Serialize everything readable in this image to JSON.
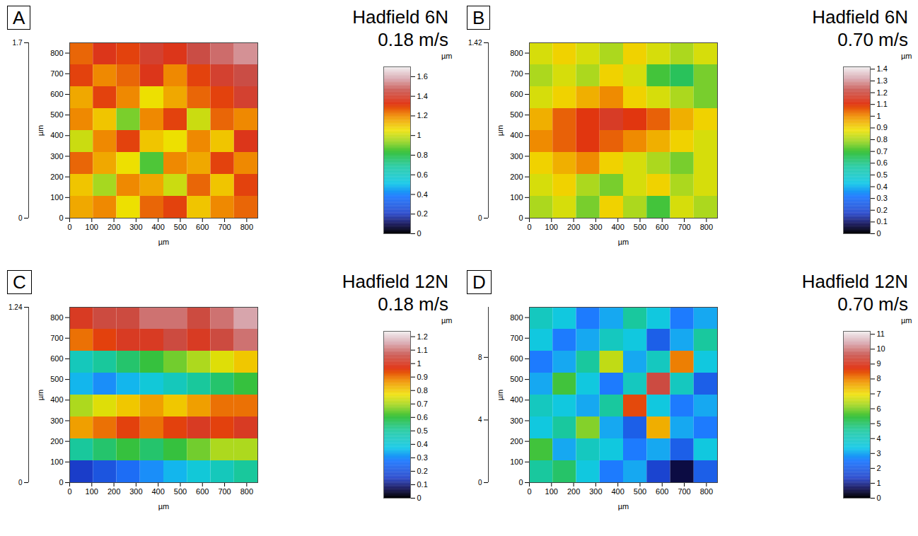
{
  "chart_data": [
    {
      "type": "heatmap",
      "panel": "A",
      "title": "Hadfield 6N",
      "subtitle": "0.18 m/s",
      "xlabel": "µm",
      "ylabel": "µm",
      "xlim": [
        0,
        850
      ],
      "xticks": [
        0,
        100,
        200,
        300,
        400,
        500,
        600,
        700,
        800
      ],
      "ylim": [
        0,
        850
      ],
      "yticks": [
        0,
        100,
        200,
        300,
        400,
        500,
        600,
        700,
        800
      ],
      "zlim": [
        0,
        1.7
      ],
      "zticks": [
        0,
        1.7
      ],
      "cells": [
        [
          1.15,
          1.2,
          1.05,
          1.25,
          1.3,
          1.1,
          1.2,
          1.25
        ],
        [
          1.1,
          0.95,
          1.2,
          1.15,
          1.0,
          1.25,
          1.1,
          1.3
        ],
        [
          1.25,
          1.15,
          1.05,
          0.85,
          1.2,
          1.15,
          1.3,
          1.2
        ],
        [
          1.0,
          1.2,
          1.3,
          1.1,
          1.05,
          1.2,
          1.1,
          1.35
        ],
        [
          1.2,
          1.1,
          0.9,
          1.2,
          1.3,
          1.0,
          1.25,
          1.2
        ],
        [
          1.15,
          1.3,
          1.2,
          1.05,
          1.15,
          1.25,
          1.3,
          1.4
        ],
        [
          1.3,
          1.2,
          1.25,
          1.35,
          1.2,
          1.3,
          1.4,
          1.45
        ],
        [
          1.25,
          1.35,
          1.3,
          1.4,
          1.35,
          1.45,
          1.5,
          1.55
        ]
      ],
      "colorbar": {
        "label": "µm",
        "range": [
          0,
          1.7
        ],
        "ticks": [
          0,
          0.2,
          0.4,
          0.6,
          0.8,
          1,
          1.2,
          1.4,
          1.6
        ]
      }
    },
    {
      "type": "heatmap",
      "panel": "B",
      "title": "Hadfield 6N",
      "subtitle": "0.70 m/s",
      "xlabel": "µm",
      "ylabel": "µm",
      "xlim": [
        0,
        850
      ],
      "xticks": [
        0,
        100,
        200,
        300,
        400,
        500,
        600,
        700,
        800
      ],
      "ylim": [
        0,
        850
      ],
      "yticks": [
        0,
        100,
        200,
        300,
        400,
        500,
        600,
        700,
        800
      ],
      "zlim": [
        0,
        1.42
      ],
      "zticks": [
        0,
        1.42
      ],
      "cells": [
        [
          0.8,
          0.85,
          0.75,
          0.9,
          0.8,
          0.7,
          0.85,
          0.8
        ],
        [
          0.85,
          0.9,
          0.8,
          0.75,
          0.85,
          0.9,
          0.8,
          0.85
        ],
        [
          0.9,
          0.95,
          1.0,
          0.9,
          0.85,
          0.8,
          0.75,
          0.85
        ],
        [
          1.0,
          1.05,
          1.1,
          1.05,
          1.0,
          0.95,
          0.9,
          0.85
        ],
        [
          0.95,
          1.05,
          1.1,
          1.15,
          1.1,
          1.05,
          0.95,
          0.9
        ],
        [
          0.85,
          0.9,
          0.95,
          1.0,
          0.9,
          0.85,
          0.8,
          0.75
        ],
        [
          0.8,
          0.85,
          0.8,
          0.9,
          0.85,
          0.7,
          0.65,
          0.75
        ],
        [
          0.85,
          0.9,
          0.85,
          0.8,
          0.9,
          0.85,
          0.8,
          0.85
        ]
      ],
      "colorbar": {
        "label": "µm",
        "range": [
          0,
          1.42
        ],
        "ticks": [
          0,
          0.1,
          0.2,
          0.3,
          0.4,
          0.5,
          0.6,
          0.7,
          0.8,
          0.9,
          1,
          1.1,
          1.2,
          1.3,
          1.4
        ]
      }
    },
    {
      "type": "heatmap",
      "panel": "C",
      "title": "Hadfield 12N",
      "subtitle": "0.18 m/s",
      "xlabel": "µm",
      "ylabel": "µm",
      "xlim": [
        0,
        850
      ],
      "xticks": [
        0,
        100,
        200,
        300,
        400,
        500,
        600,
        700,
        800
      ],
      "ylim": [
        0,
        850
      ],
      "yticks": [
        0,
        100,
        200,
        300,
        400,
        500,
        600,
        700,
        800
      ],
      "zlim": [
        0,
        1.24
      ],
      "zticks": [
        0,
        1.24
      ],
      "cells": [
        [
          0.15,
          0.2,
          0.25,
          0.3,
          0.35,
          0.4,
          0.45,
          0.5
        ],
        [
          0.5,
          0.55,
          0.6,
          0.55,
          0.6,
          0.65,
          0.7,
          0.7
        ],
        [
          0.85,
          0.9,
          0.95,
          0.9,
          0.95,
          1.0,
          0.95,
          1.0
        ],
        [
          0.7,
          0.75,
          0.8,
          0.85,
          0.8,
          0.85,
          0.9,
          0.9
        ],
        [
          0.35,
          0.3,
          0.35,
          0.4,
          0.45,
          0.5,
          0.55,
          0.6
        ],
        [
          0.45,
          0.5,
          0.55,
          0.6,
          0.65,
          0.7,
          0.75,
          0.8
        ],
        [
          0.9,
          0.95,
          1.0,
          1.0,
          1.05,
          1.0,
          1.05,
          1.1
        ],
        [
          1.0,
          1.05,
          1.05,
          1.1,
          1.1,
          1.05,
          1.1,
          1.15
        ]
      ],
      "colorbar": {
        "label": "µm",
        "range": [
          0,
          1.24
        ],
        "ticks": [
          0,
          0.1,
          0.2,
          0.3,
          0.4,
          0.5,
          0.6,
          0.7,
          0.8,
          0.9,
          1,
          1.1,
          1.2
        ]
      }
    },
    {
      "type": "heatmap",
      "panel": "D",
      "title": "Hadfield 12N",
      "subtitle": "0.70 m/s",
      "xlabel": "µm",
      "ylabel": "µm",
      "xlim": [
        0,
        850
      ],
      "xticks": [
        0,
        100,
        200,
        300,
        400,
        500,
        600,
        700,
        800
      ],
      "ylim": [
        0,
        850
      ],
      "yticks": [
        0,
        100,
        200,
        300,
        400,
        500,
        600,
        700,
        800
      ],
      "zlim": [
        0,
        11.2
      ],
      "zticks": [
        0,
        4,
        8
      ],
      "cells": [
        [
          4.5,
          5.0,
          3.5,
          2.5,
          3.0,
          1.5,
          0.5,
          2.0
        ],
        [
          5.5,
          3.0,
          4.0,
          3.5,
          2.5,
          3.0,
          2.0,
          3.5
        ],
        [
          3.5,
          4.5,
          6.0,
          3.0,
          2.0,
          7.5,
          3.0,
          2.5
        ],
        [
          4.0,
          3.5,
          3.0,
          4.5,
          8.5,
          3.5,
          2.5,
          3.0
        ],
        [
          3.0,
          5.5,
          3.5,
          2.5,
          4.0,
          9.5,
          4.0,
          2.0
        ],
        [
          2.5,
          3.0,
          4.5,
          6.5,
          3.0,
          4.0,
          8.0,
          3.5
        ],
        [
          3.5,
          2.5,
          3.0,
          4.0,
          3.5,
          2.0,
          3.0,
          4.5
        ],
        [
          4.0,
          3.5,
          2.5,
          3.0,
          4.5,
          3.5,
          2.5,
          3.0
        ]
      ],
      "colorbar": {
        "label": "µm",
        "range": [
          0,
          11.2
        ],
        "ticks": [
          0,
          1,
          2,
          3,
          4,
          5,
          6,
          7,
          8,
          9,
          10,
          11
        ]
      }
    }
  ]
}
